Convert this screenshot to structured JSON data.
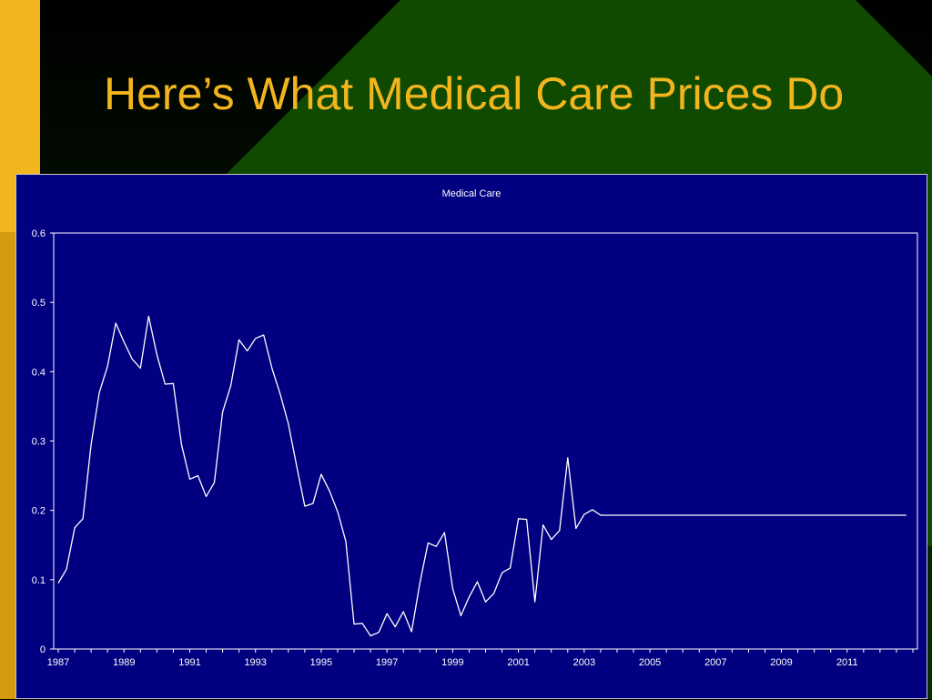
{
  "slide": {
    "title": "Here’s What Medical Care Prices Do"
  },
  "colors": {
    "gold": "#F2B51E",
    "dark_green": "#0F4A00",
    "chart_background": "#000080",
    "line": "#FFFFFF"
  },
  "chart_data": {
    "type": "line",
    "title": "Medical Care",
    "xlabel": "",
    "ylabel": "",
    "xlim": [
      1987,
      2013
    ],
    "ylim": [
      0,
      0.6
    ],
    "grid": false,
    "y_ticks": [
      "0",
      "0.1",
      "0.2",
      "0.3",
      "0.4",
      "0.5",
      "0.6"
    ],
    "x_ticks": [
      "1987",
      "1989",
      "1991",
      "1993",
      "1995",
      "1997",
      "1999",
      "2001",
      "2003",
      "2005",
      "2007",
      "2009",
      "2011"
    ],
    "series": [
      {
        "x": [
          1987.0,
          1987.25,
          1987.5,
          1987.75,
          1988.0,
          1988.25,
          1988.5,
          1988.75,
          1989.0,
          1989.25,
          1989.5,
          1989.75,
          1990.0,
          1990.25,
          1990.5,
          1990.75,
          1991.0,
          1991.25,
          1991.5,
          1991.75,
          1992.0,
          1992.25,
          1992.5,
          1992.75,
          1993.0,
          1993.25,
          1993.5,
          1993.75,
          1994.0,
          1994.25,
          1994.5,
          1994.75,
          1995.0,
          1995.25,
          1995.5,
          1995.75,
          1996.0,
          1996.25,
          1996.5,
          1996.75,
          1997.0,
          1997.25,
          1997.5,
          1997.75,
          1998.0,
          1998.25,
          1998.5,
          1998.75,
          1999.0,
          1999.25,
          1999.5,
          1999.75,
          2000.0,
          2000.25,
          2000.5,
          2000.75,
          2001.0,
          2001.25,
          2001.5,
          2001.75,
          2002.0,
          2002.25,
          2002.5,
          2002.75,
          2003.0,
          2003.25,
          2003.5,
          2004.0,
          2005.0,
          2006.0,
          2007.0,
          2008.0,
          2009.0,
          2010.0,
          2011.0,
          2012.0,
          2012.8
        ],
        "values": [
          0.095,
          0.115,
          0.175,
          0.188,
          0.295,
          0.37,
          0.408,
          0.47,
          0.443,
          0.418,
          0.405,
          0.48,
          0.425,
          0.382,
          0.383,
          0.295,
          0.245,
          0.25,
          0.22,
          0.24,
          0.342,
          0.38,
          0.446,
          0.43,
          0.448,
          0.453,
          0.405,
          0.368,
          0.325,
          0.265,
          0.206,
          0.21,
          0.252,
          0.228,
          0.198,
          0.155,
          0.036,
          0.037,
          0.019,
          0.024,
          0.051,
          0.032,
          0.054,
          0.025,
          0.095,
          0.153,
          0.148,
          0.168,
          0.087,
          0.048,
          0.075,
          0.097,
          0.068,
          0.08,
          0.11,
          0.117,
          0.188,
          0.187,
          0.068,
          0.179,
          0.158,
          0.171,
          0.276,
          0.174,
          0.194,
          0.201,
          0.193,
          0.193,
          0.193,
          0.193,
          0.193,
          0.193,
          0.193,
          0.193,
          0.193,
          0.193,
          0.193
        ]
      }
    ]
  }
}
